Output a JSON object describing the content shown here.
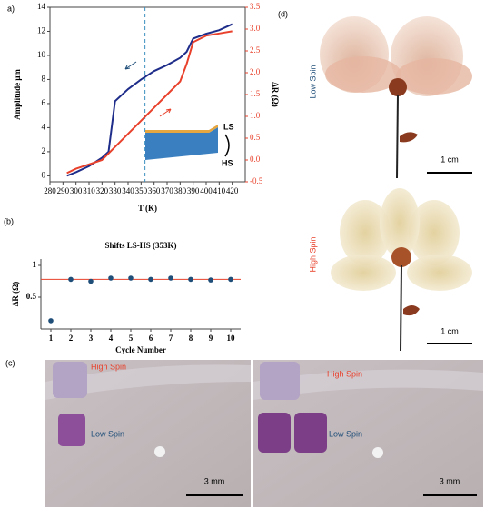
{
  "chart_data": [
    {
      "type": "line",
      "panel_label": "a)",
      "xlabel": "T (K)",
      "ylabel": "Amplitude μm",
      "y2label": "ΔR (Ω)",
      "x": [
        293,
        300,
        310,
        320,
        325,
        330,
        340,
        350,
        360,
        370,
        380,
        385,
        390,
        400,
        410,
        420
      ],
      "series": [
        {
          "color": "#1f2d8a",
          "values": [
            0,
            0.3,
            0.8,
            1.5,
            2,
            6.2,
            7.2,
            8,
            8.7,
            9.2,
            9.8,
            10.3,
            11.4,
            11.8,
            12.1,
            12.6
          ]
        },
        {
          "color": "#e8402a",
          "axis": "y2",
          "values": [
            -0.3,
            -0.2,
            -0.1,
            0,
            0.15,
            0.3,
            0.6,
            0.9,
            1.2,
            1.5,
            1.8,
            2.2,
            2.7,
            2.85,
            2.9,
            2.95
          ]
        }
      ],
      "xlim": [
        280,
        430
      ],
      "xticks": [
        280,
        290,
        300,
        310,
        320,
        330,
        340,
        350,
        360,
        370,
        380,
        390,
        400,
        410,
        420
      ],
      "ylim": [
        -0.5,
        14
      ],
      "yticks": [
        0,
        2,
        4,
        6,
        8,
        10,
        12,
        14
      ],
      "y2lim": [
        -0.5,
        3.5
      ],
      "y2ticks": [
        -0.5,
        {
          "value": 0,
          "label": "0.0"
        },
        0.5,
        {
          "value": 1,
          "label": "1.0"
        },
        1.5,
        {
          "value": 2,
          "label": "2.0"
        },
        2.5,
        {
          "value": 3,
          "label": "3.0"
        },
        3.5
      ],
      "vline": 353,
      "inset_labels": [
        "LS",
        "HS"
      ]
    },
    {
      "type": "scatter",
      "panel_label": "(b)",
      "title": "Shifts LS-HS (353K)",
      "xlabel": "Cycle Number",
      "ylabel": "ΔR (Ω)",
      "x": [
        1,
        2,
        3,
        4,
        5,
        6,
        7,
        8,
        9,
        10
      ],
      "values": [
        0.13,
        0.78,
        0.75,
        0.8,
        0.8,
        0.78,
        0.8,
        0.78,
        0.77,
        0.78
      ],
      "color": "#1f4e79",
      "ref_line": 0.78,
      "ref_color": "#e8402a",
      "xlim": [
        0.5,
        10.5
      ],
      "xticks": [
        1,
        2,
        3,
        4,
        5,
        6,
        7,
        8,
        9,
        10
      ],
      "ylim": [
        0,
        1.1
      ],
      "yticks": [
        0.5,
        1
      ]
    }
  ],
  "photos": {
    "c": {
      "label": "(c)",
      "left": {
        "top": "High Spin",
        "bottom": "Low Spin",
        "scale": "3 mm"
      },
      "right": {
        "top": "High Spin",
        "bottom": "Low Spin",
        "scale": "3 mm"
      }
    },
    "d": {
      "label": "(d)",
      "top": {
        "state": "Low Spin",
        "scale": "1 cm"
      },
      "bottom": {
        "state": "High Spin",
        "scale": "1 cm"
      }
    }
  }
}
